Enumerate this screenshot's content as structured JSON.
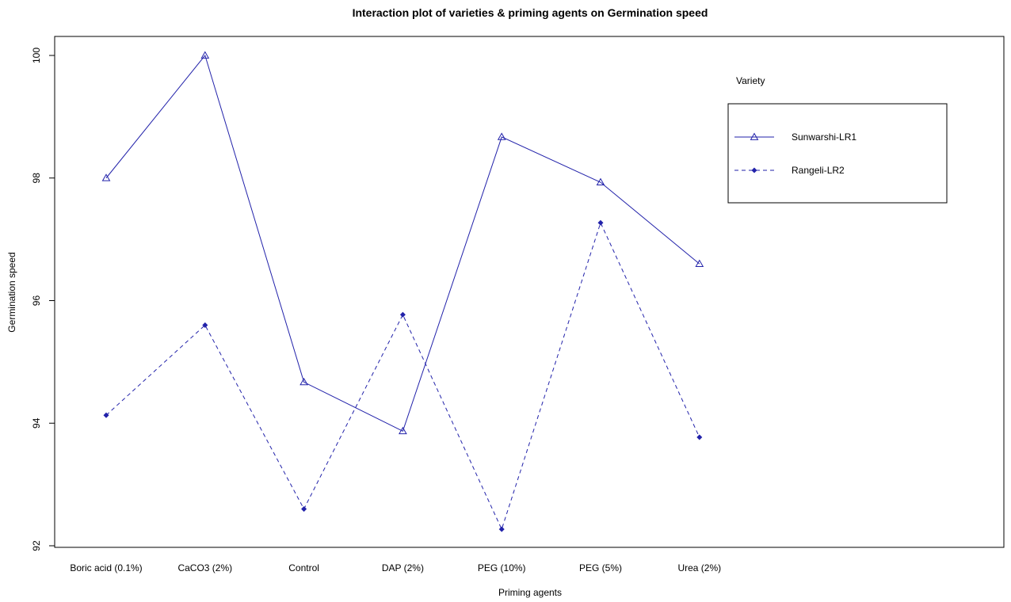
{
  "chart_data": {
    "type": "line",
    "title": "Interaction plot of varieties & priming agents on Germination speed",
    "xlabel": "Priming agents",
    "ylabel": "Germination speed",
    "categories": [
      "Boric acid (0.1%)",
      "CaCO3 (2%)",
      "Control",
      "DAP (2%)",
      "PEG (10%)",
      "PEG (5%)",
      "Urea (2%)"
    ],
    "ylim": [
      92,
      100
    ],
    "yticks": [
      92,
      94,
      96,
      98,
      100
    ],
    "grid": false,
    "legend": {
      "title": "Variety",
      "placement": "top-right"
    },
    "series": [
      {
        "name": "Sunwarshi-LR1",
        "values": [
          98.0,
          100.0,
          94.67,
          93.87,
          98.67,
          97.93,
          96.6
        ],
        "color": "#2222aa",
        "line_style": "solid",
        "marker": "triangle"
      },
      {
        "name": "Rangeli-LR2",
        "values": [
          94.13,
          95.6,
          92.6,
          95.77,
          92.27,
          97.27,
          93.77
        ],
        "color": "#2222aa",
        "line_style": "dashed",
        "marker": "diamond"
      }
    ]
  }
}
